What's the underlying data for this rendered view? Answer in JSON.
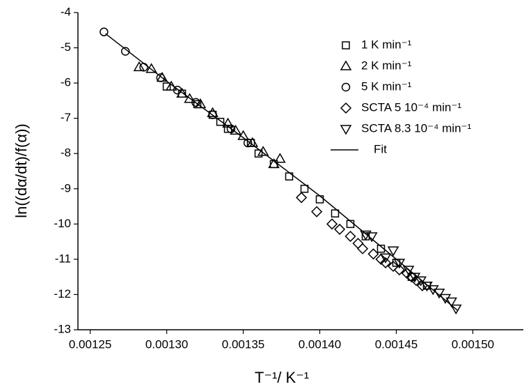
{
  "chart_data": {
    "type": "scatter",
    "x_label": "T⁻¹/ K⁻¹",
    "y_label": "ln((dα/dt)/f(α))",
    "xlim": [
      0.001242,
      0.001533
    ],
    "ylim": [
      -13,
      -4
    ],
    "xticks": [
      0.00125,
      {
        "value": 0.0013,
        "label": "0.00130"
      },
      0.00135,
      {
        "value": 0.0014,
        "label": "0.00140"
      },
      0.00145,
      {
        "value": 0.0015,
        "label": "0.00150"
      }
    ],
    "yticks": [
      -4,
      -5,
      -6,
      -7,
      -8,
      -9,
      -10,
      -11,
      -12,
      -13
    ],
    "legend": "upper right",
    "series": [
      {
        "name": "1 K min⁻¹",
        "color": "#000000",
        "marker": "square",
        "x": [
          0.0013,
          0.00131,
          0.00132,
          0.00133,
          0.001335,
          0.00134,
          0.001355,
          0.00136,
          0.00137,
          0.00138,
          0.00139,
          0.0014,
          0.00141,
          0.00142,
          0.00143,
          0.00144,
          0.00145,
          0.00146,
          0.00147
        ],
        "values": [
          -6.1,
          -6.3,
          -6.6,
          -6.9,
          -7.1,
          -7.3,
          -7.7,
          -8.0,
          -8.3,
          -8.65,
          -9.0,
          -9.3,
          -9.7,
          -10.0,
          -10.35,
          -10.7,
          -11.1,
          -11.5,
          -11.75
        ]
      },
      {
        "name": "2 K min⁻¹",
        "color": "#000000",
        "marker": "triangle-up",
        "x": [
          0.001282,
          0.00129,
          0.001297,
          0.001303,
          0.00131,
          0.001315,
          0.001322,
          0.00133,
          0.00134,
          0.001345,
          0.00135,
          0.001356,
          0.001363,
          0.00137,
          0.001374
        ],
        "values": [
          -5.55,
          -5.6,
          -5.85,
          -6.1,
          -6.3,
          -6.45,
          -6.6,
          -6.85,
          -7.15,
          -7.35,
          -7.5,
          -7.7,
          -7.95,
          -8.3,
          -8.15
        ]
      },
      {
        "name": "5 K min⁻¹",
        "color": "#000000",
        "marker": "circle",
        "x": [
          0.001259,
          0.001273,
          0.001285,
          0.001296,
          0.001307,
          0.001319,
          0.00133,
          0.001342,
          0.001353
        ],
        "values": [
          -4.55,
          -5.1,
          -5.55,
          -5.85,
          -6.2,
          -6.55,
          -6.9,
          -7.3,
          -7.7
        ]
      },
      {
        "name": "SCTA 5 10⁻⁴ min⁻¹",
        "color": "#000000",
        "marker": "diamond",
        "x": [
          0.001388,
          0.001398,
          0.001408,
          0.001413,
          0.00142,
          0.001425,
          0.001428,
          0.001435,
          0.00144,
          0.001443,
          0.001448,
          0.001452,
          0.001457,
          0.00146,
          0.001463,
          0.001467
        ],
        "values": [
          -9.25,
          -9.65,
          -10.0,
          -10.15,
          -10.35,
          -10.55,
          -10.7,
          -10.85,
          -11.0,
          -11.1,
          -11.2,
          -11.3,
          -11.4,
          -11.5,
          -11.6,
          -11.75
        ]
      },
      {
        "name": "SCTA 8.3 10⁻⁴ min⁻¹",
        "color": "#000000",
        "marker": "triangle-down",
        "x": [
          0.00143,
          0.001434,
          0.001443,
          0.001448,
          0.001452,
          0.001458,
          0.001462,
          0.001466,
          0.00147,
          0.001474,
          0.001478,
          0.001482,
          0.001486,
          0.001489
        ],
        "values": [
          -10.3,
          -10.35,
          -10.95,
          -10.75,
          -11.1,
          -11.3,
          -11.5,
          -11.6,
          -11.75,
          -11.85,
          -11.95,
          -12.1,
          -12.2,
          -12.4
        ]
      },
      {
        "name": "Fit",
        "color": "#000000",
        "marker": "line",
        "x": [
          0.00126,
          0.0013,
          0.00135,
          0.0014,
          0.00145,
          0.00149
        ],
        "values": [
          -4.6,
          -5.95,
          -7.55,
          -9.2,
          -11.0,
          -12.45
        ]
      }
    ]
  }
}
